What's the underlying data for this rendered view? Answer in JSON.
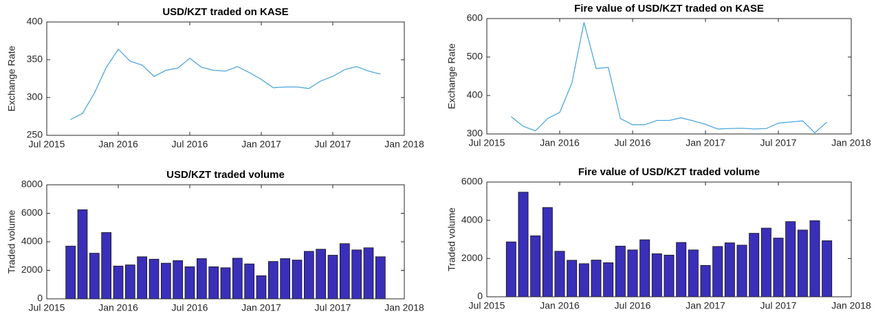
{
  "chart_data": [
    {
      "type": "line",
      "title": "USD/KZT traded on KASE",
      "ylabel": "Exchange Rate",
      "color": "#4ea6dc",
      "x": [
        "Sep 2015",
        "Oct 2015",
        "Nov 2015",
        "Dec 2015",
        "Jan 2016",
        "Feb 2016",
        "Mar 2016",
        "Apr 2016",
        "May 2016",
        "Jun 2016",
        "Jul 2016",
        "Aug 2016",
        "Sep 2016",
        "Oct 2016",
        "Nov 2016",
        "Dec 2016",
        "Jan 2017",
        "Feb 2017",
        "Mar 2017",
        "Apr 2017",
        "May 2017",
        "Jun 2017",
        "Jul 2017",
        "Aug 2017",
        "Sep 2017",
        "Oct 2017",
        "Nov 2017"
      ],
      "values": [
        271,
        279,
        306,
        340,
        364,
        348,
        343,
        328,
        336,
        339,
        352,
        340,
        336,
        335,
        341,
        333,
        324,
        313,
        314,
        314,
        312,
        322,
        328,
        337,
        341,
        335,
        331
      ],
      "xlim": [
        "Jul 2015",
        "Jan 2018"
      ],
      "xticks": [
        "Jul 2015",
        "Jan 2016",
        "Jul 2016",
        "Jan 2017",
        "Jul 2017",
        "Jan 2018"
      ],
      "ylim": [
        250,
        400
      ],
      "yticks": [
        250,
        300,
        350,
        400
      ]
    },
    {
      "type": "line",
      "title": "Fire value of USD/KZT traded on KASE",
      "ylabel": "Exchange Rate",
      "color": "#4ea6dc",
      "x": [
        "Sep 2015",
        "Oct 2015",
        "Nov 2015",
        "Dec 2015",
        "Jan 2016",
        "Feb 2016",
        "Mar 2016",
        "Apr 2016",
        "May 2016",
        "Jun 2016",
        "Jul 2016",
        "Aug 2016",
        "Sep 2016",
        "Oct 2016",
        "Nov 2016",
        "Dec 2016",
        "Jan 2017",
        "Feb 2017",
        "Mar 2017",
        "Apr 2017",
        "May 2017",
        "Jun 2017",
        "Jul 2017",
        "Aug 2017",
        "Sep 2017",
        "Oct 2017",
        "Nov 2017"
      ],
      "values": [
        345,
        320,
        308,
        340,
        356,
        432,
        590,
        470,
        473,
        340,
        324,
        324,
        335,
        335,
        342,
        334,
        325,
        313,
        314,
        315,
        313,
        314,
        328,
        331,
        334,
        303,
        331
      ],
      "xlim": [
        "Jul 2015",
        "Jan 2018"
      ],
      "xticks": [
        "Jul 2015",
        "Jan 2016",
        "Jul 2016",
        "Jan 2017",
        "Jul 2017",
        "Jan 2018"
      ],
      "ylim": [
        300,
        600
      ],
      "yticks": [
        300,
        400,
        500,
        600
      ]
    },
    {
      "type": "bar",
      "title": "USD/KZT traded volume",
      "ylabel": "Traded volume",
      "color": "#3a2fb8",
      "x": [
        "Sep 2015",
        "Oct 2015",
        "Nov 2015",
        "Dec 2015",
        "Jan 2016",
        "Feb 2016",
        "Mar 2016",
        "Apr 2016",
        "May 2016",
        "Jun 2016",
        "Jul 2016",
        "Aug 2016",
        "Sep 2016",
        "Oct 2016",
        "Nov 2016",
        "Dec 2016",
        "Jan 2017",
        "Feb 2017",
        "Mar 2017",
        "Apr 2017",
        "May 2017",
        "Jun 2017",
        "Jul 2017",
        "Aug 2017",
        "Sep 2017",
        "Oct 2017",
        "Nov 2017"
      ],
      "values": [
        3700,
        6250,
        3200,
        4650,
        2300,
        2380,
        2950,
        2780,
        2500,
        2680,
        2250,
        2820,
        2250,
        2180,
        2850,
        2450,
        1620,
        2620,
        2820,
        2720,
        3330,
        3480,
        3060,
        3870,
        3430,
        3580,
        2950
      ],
      "xlim": [
        "Jul 2015",
        "Jan 2018"
      ],
      "xticks": [
        "Jul 2015",
        "Jan 2016",
        "Jul 2016",
        "Jan 2017",
        "Jul 2017",
        "Jan 2018"
      ],
      "ylim": [
        0,
        8000
      ],
      "yticks": [
        0,
        2000,
        4000,
        6000,
        8000
      ]
    },
    {
      "type": "bar",
      "title": "Fire value of USD/KZT traded volume",
      "ylabel": "Traded volume",
      "color": "#3a2fb8",
      "x": [
        "Sep 2015",
        "Oct 2015",
        "Nov 2015",
        "Dec 2015",
        "Jan 2016",
        "Feb 2016",
        "Mar 2016",
        "Apr 2016",
        "May 2016",
        "Jun 2016",
        "Jul 2016",
        "Aug 2016",
        "Sep 2016",
        "Oct 2016",
        "Nov 2016",
        "Dec 2016",
        "Jan 2017",
        "Feb 2017",
        "Mar 2017",
        "Apr 2017",
        "May 2017",
        "Jun 2017",
        "Jul 2017",
        "Aug 2017",
        "Sep 2017",
        "Oct 2017",
        "Nov 2017"
      ],
      "values": [
        2870,
        5470,
        3190,
        4670,
        2380,
        1910,
        1730,
        1920,
        1780,
        2650,
        2450,
        2980,
        2250,
        2180,
        2840,
        2450,
        1640,
        2630,
        2820,
        2700,
        3320,
        3590,
        3070,
        3930,
        3490,
        3980,
        2930
      ],
      "xlim": [
        "Jul 2015",
        "Jan 2018"
      ],
      "xticks": [
        "Jul 2015",
        "Jan 2016",
        "Jul 2016",
        "Jan 2017",
        "Jul 2017",
        "Jan 2018"
      ],
      "ylim": [
        0,
        6000
      ],
      "yticks": [
        0,
        2000,
        4000,
        6000
      ]
    }
  ]
}
